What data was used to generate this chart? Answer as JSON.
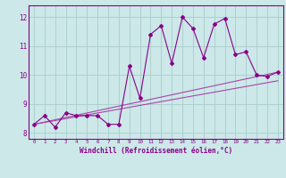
{
  "xlabel": "Windchill (Refroidissement éolien,°C)",
  "bg_color": "#cce8e8",
  "grid_color": "#aacccc",
  "line_color": "#880088",
  "line_color2": "#aa44aa",
  "xlim": [
    -0.5,
    23.5
  ],
  "ylim": [
    7.8,
    12.4
  ],
  "yticks": [
    8,
    9,
    10,
    11,
    12
  ],
  "xticks": [
    0,
    1,
    2,
    3,
    4,
    5,
    6,
    7,
    8,
    9,
    10,
    11,
    12,
    13,
    14,
    15,
    16,
    17,
    18,
    19,
    20,
    21,
    22,
    23
  ],
  "data_line1_x": [
    0,
    1,
    2,
    3,
    4,
    5,
    6,
    7,
    8,
    9,
    10,
    11,
    12,
    13,
    14,
    15,
    16,
    17,
    18,
    19,
    20,
    21,
    22,
    23
  ],
  "data_line1_y": [
    8.3,
    8.6,
    8.2,
    8.7,
    8.6,
    8.6,
    8.6,
    8.3,
    8.3,
    10.3,
    9.2,
    11.4,
    11.7,
    10.4,
    12.0,
    11.6,
    10.6,
    11.75,
    11.95,
    10.7,
    10.8,
    10.0,
    9.95,
    10.1
  ],
  "data_line2_x": [
    0,
    23
  ],
  "data_line2_y": [
    8.3,
    10.1
  ],
  "data_line3_x": [
    0,
    23
  ],
  "data_line3_y": [
    8.3,
    9.8
  ]
}
